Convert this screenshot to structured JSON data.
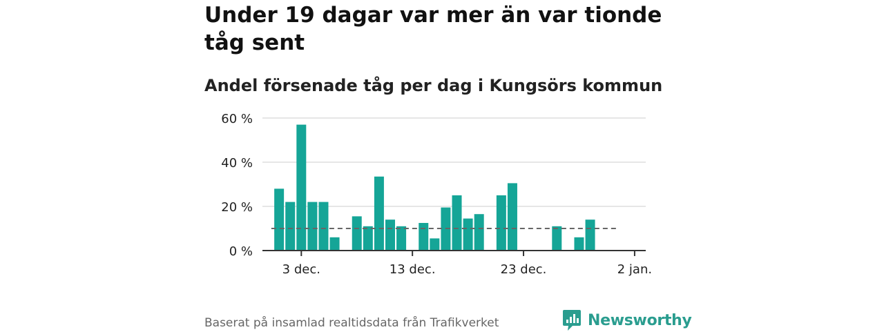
{
  "title": "Under 19 dagar var mer än var tionde tåg sent",
  "subtitle": "Andel försenade tåg per dag i Kungsörs kommun",
  "source": "Baserat på insamlad realtidsdata från Trafikverket",
  "brand": {
    "name": "Newsworthy",
    "icon": "newsworthy-logo-icon"
  },
  "colors": {
    "bar": "#15a597",
    "brand": "#2a9d8f",
    "reference_line": "#666666",
    "grid": "#dddddd",
    "axis": "#333333"
  },
  "chart_data": {
    "type": "bar",
    "x_unit": "day",
    "x_start": "1 dec.",
    "x_end": "31 dec.",
    "x_ticks": [
      {
        "day": 3,
        "label": "3 dec."
      },
      {
        "day": 13,
        "label": "13 dec."
      },
      {
        "day": 23,
        "label": "23 dec."
      },
      {
        "day": 33,
        "label": "2 jan."
      }
    ],
    "y_ticks": [
      {
        "value": 0,
        "label": "0 %"
      },
      {
        "value": 20,
        "label": "20 %"
      },
      {
        "value": 40,
        "label": "40 %"
      },
      {
        "value": 60,
        "label": "60 %"
      }
    ],
    "ylim": [
      0,
      60
    ],
    "xlim": [
      -0.5,
      34
    ],
    "reference_value": 10,
    "reference_range": [
      0.3,
      31.6
    ],
    "bars": [
      {
        "day": 1,
        "value": 28
      },
      {
        "day": 2,
        "value": 22
      },
      {
        "day": 3,
        "value": 57
      },
      {
        "day": 4,
        "value": 22
      },
      {
        "day": 5,
        "value": 22
      },
      {
        "day": 6,
        "value": 6
      },
      {
        "day": 8,
        "value": 15.5
      },
      {
        "day": 9,
        "value": 11
      },
      {
        "day": 10,
        "value": 33.5
      },
      {
        "day": 11,
        "value": 14
      },
      {
        "day": 12,
        "value": 11
      },
      {
        "day": 14,
        "value": 12.5
      },
      {
        "day": 15,
        "value": 5.5
      },
      {
        "day": 16,
        "value": 19.5
      },
      {
        "day": 17,
        "value": 25
      },
      {
        "day": 18,
        "value": 14.5
      },
      {
        "day": 19,
        "value": 16.5
      },
      {
        "day": 21,
        "value": 25
      },
      {
        "day": 22,
        "value": 30.5
      },
      {
        "day": 26,
        "value": 11
      },
      {
        "day": 28,
        "value": 6
      },
      {
        "day": 29,
        "value": 14
      }
    ],
    "grid": true,
    "legend": "none"
  }
}
